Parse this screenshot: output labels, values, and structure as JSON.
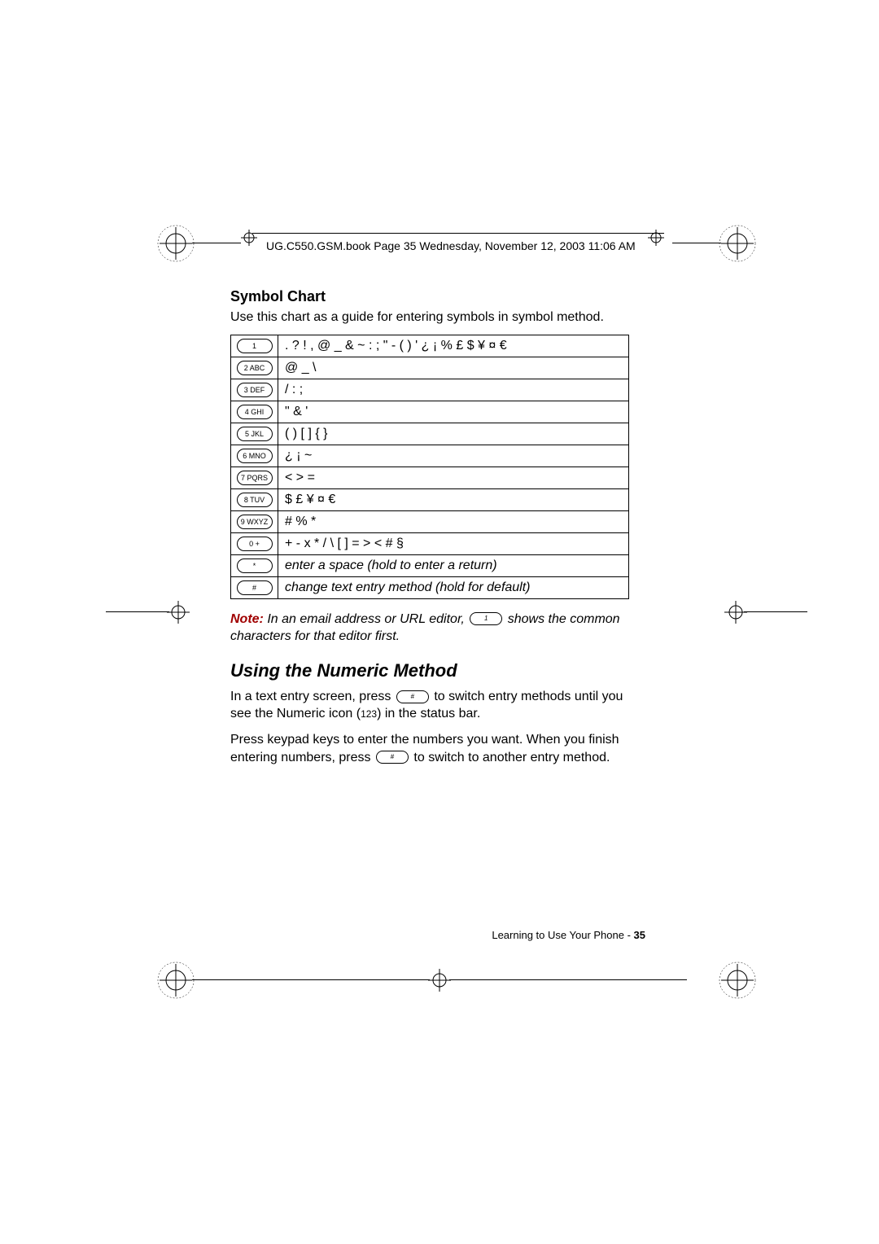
{
  "header": {
    "text": "UG.C550.GSM.book  Page 35  Wednesday, November 12, 2003  11:06 AM"
  },
  "section": {
    "title": "Symbol Chart",
    "intro": "Use this chart as a guide for entering symbols in symbol method."
  },
  "table": {
    "rows": [
      {
        "key": "1",
        "symbols": ". ? ! , @ _ & ~ : ; \" - ( ) ' ¿ ¡ % £ $ ¥ ¤ €"
      },
      {
        "key": "2 ABC",
        "symbols": "@ _ \\"
      },
      {
        "key": "3 DEF",
        "symbols": "/ : ;"
      },
      {
        "key": "4 GHI",
        "symbols": "\" & '"
      },
      {
        "key": "5 JKL",
        "symbols": "( ) [ ] { }"
      },
      {
        "key": "6 MNO",
        "symbols": "¿ ¡ ~"
      },
      {
        "key": "7 PQRS",
        "symbols": "< > ="
      },
      {
        "key": "8 TUV",
        "symbols": "$ £ ¥ ¤ €"
      },
      {
        "key": "9 WXYZ",
        "symbols": "# % *"
      },
      {
        "key": "0 +",
        "symbols": "+ - x * / \\ [ ] = > < # §"
      },
      {
        "key": "*",
        "symbols": "enter a space (hold to enter a return)",
        "italic": true
      },
      {
        "key": "#",
        "symbols": "change text entry method (hold for default)",
        "italic": true
      }
    ]
  },
  "note": {
    "label": "Note:",
    "before": " In an email address or URL editor, ",
    "key": "1",
    "after": " shows the common characters for that editor first."
  },
  "numeric": {
    "title": "Using the Numeric Method",
    "p1a": "In a text entry screen, press ",
    "p1key": "#",
    "p1b": " to switch entry methods until you see the Numeric icon (",
    "p1icon": "123",
    "p1c": ") in the status bar.",
    "p2a": "Press keypad keys to enter the numbers you want. When you finish entering numbers, press ",
    "p2key": "#",
    "p2b": " to switch to another entry method."
  },
  "footer": {
    "text": "Learning to Use Your Phone - ",
    "page": "35"
  }
}
